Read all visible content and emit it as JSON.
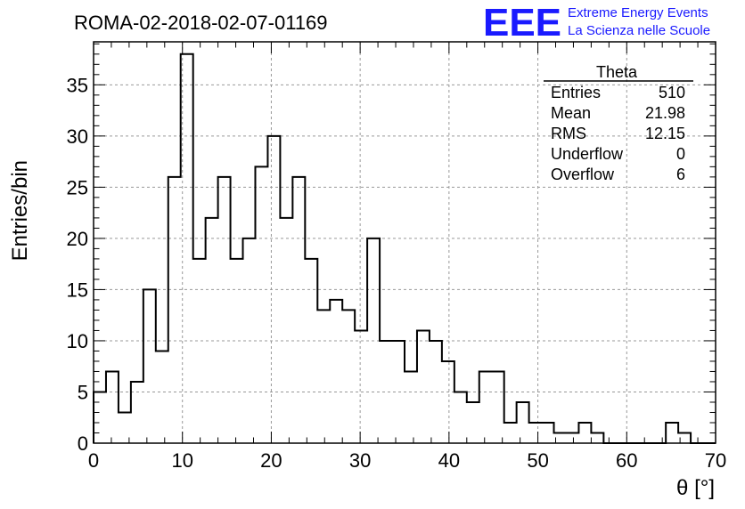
{
  "title": "ROMA-02-2018-02-07-01169",
  "logo": {
    "letters": "EEE",
    "line1": "Extreme Energy Events",
    "line2": "La Scienza nelle Scuole",
    "color": "#1a1aff"
  },
  "stats": {
    "name": "Theta",
    "rows": [
      {
        "label": "Entries",
        "value": "510"
      },
      {
        "label": "Mean",
        "value": "21.98"
      },
      {
        "label": "RMS",
        "value": "12.15"
      },
      {
        "label": "Underflow",
        "value": "0"
      },
      {
        "label": "Overflow",
        "value": "6"
      }
    ]
  },
  "chart_data": {
    "type": "histogram",
    "xlabel": "θ [°]",
    "ylabel": "Entries/bin",
    "xlim": [
      0,
      70
    ],
    "ylim": [
      0,
      39.2
    ],
    "bin_width": 1.4,
    "xticks": [
      0,
      10,
      20,
      30,
      40,
      50,
      60,
      70
    ],
    "yticks": [
      0,
      5,
      10,
      15,
      20,
      25,
      30,
      35
    ],
    "grid": true,
    "values": [
      5,
      7,
      3,
      6,
      15,
      9,
      26,
      38,
      18,
      22,
      26,
      18,
      20,
      27,
      30,
      22,
      26,
      18,
      13,
      14,
      13,
      11,
      20,
      10,
      10,
      7,
      11,
      10,
      8,
      5,
      4,
      7,
      7,
      2,
      4,
      2,
      2,
      1,
      1,
      2,
      1,
      0,
      0,
      0,
      0,
      0,
      2,
      1,
      0,
      0
    ],
    "line_color": "#000000"
  }
}
